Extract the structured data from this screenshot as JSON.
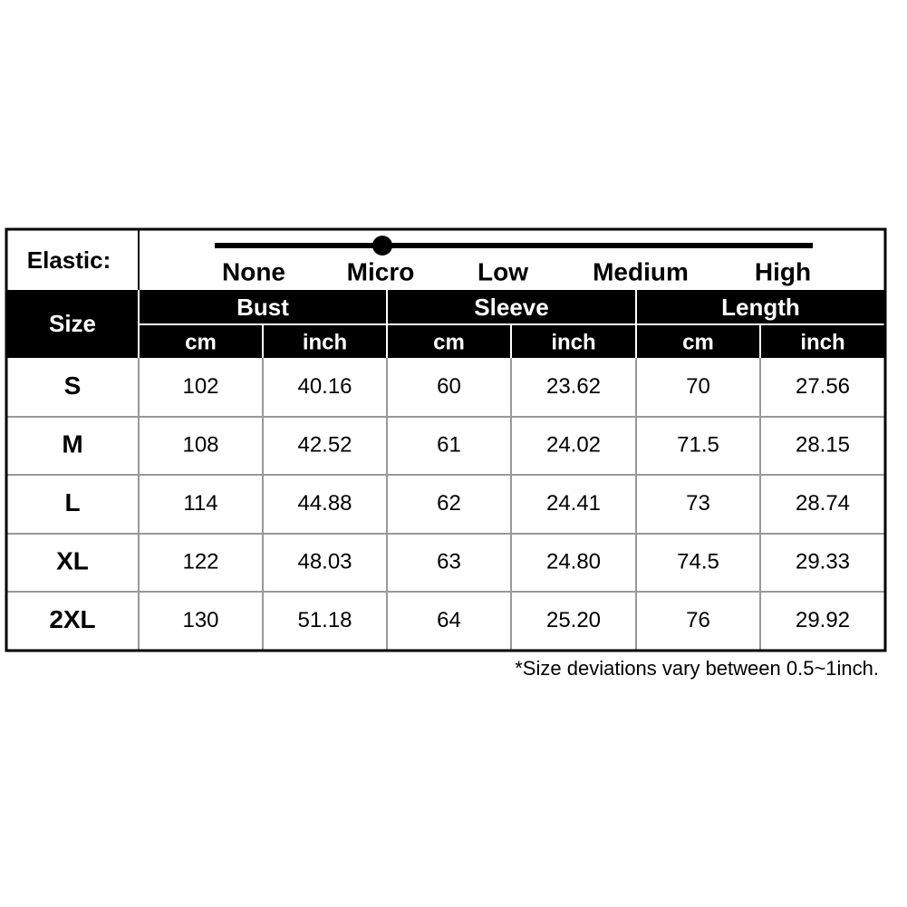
{
  "elastic": {
    "label": "Elastic:",
    "levels": [
      "None",
      "Micro",
      "Low",
      "Medium",
      "High"
    ]
  },
  "header": {
    "size": "Size",
    "groups": [
      {
        "name": "Bust",
        "units": [
          "cm",
          "inch"
        ]
      },
      {
        "name": "Sleeve",
        "units": [
          "cm",
          "inch"
        ]
      },
      {
        "name": "Length",
        "units": [
          "cm",
          "inch"
        ]
      }
    ]
  },
  "table": {
    "rows": [
      [
        "S",
        "102",
        "40.16",
        "60",
        "23.62",
        "70",
        "27.56"
      ],
      [
        "M",
        "108",
        "42.52",
        "61",
        "24.02",
        "71.5",
        "28.15"
      ],
      [
        "L",
        "114",
        "44.88",
        "62",
        "24.41",
        "73",
        "28.74"
      ],
      [
        "XL",
        "122",
        "48.03",
        "63",
        "24.80",
        "74.5",
        "29.33"
      ],
      [
        "2XL",
        "130",
        "51.18",
        "64",
        "25.20",
        "76",
        "29.92"
      ]
    ]
  },
  "note": "*Size deviations vary between 0.5~1inch."
}
